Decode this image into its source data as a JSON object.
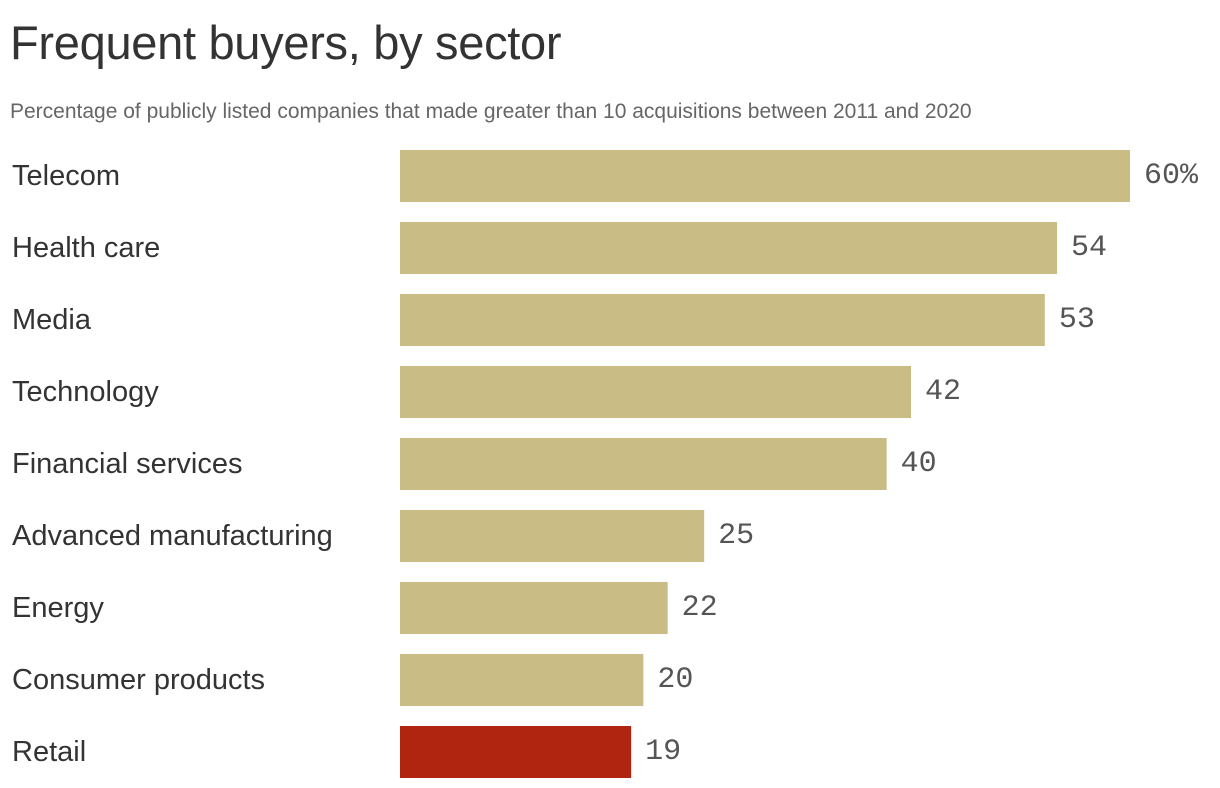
{
  "chart_data": {
    "type": "bar",
    "orientation": "horizontal",
    "title": "Frequent buyers, by sector",
    "subtitle": "Percentage of publicly listed companies that made greater than 10 acquisitions between 2011 and 2020",
    "categories": [
      "Telecom",
      "Health care",
      "Media",
      "Technology",
      "Financial services",
      "Advanced manufacturing",
      "Energy",
      "Consumer products",
      "Retail"
    ],
    "values": [
      60,
      54,
      53,
      42,
      40,
      25,
      22,
      20,
      19
    ],
    "value_labels": [
      "60%",
      "54",
      "53",
      "42",
      "40",
      "25",
      "22",
      "20",
      "19"
    ],
    "xlim": [
      0,
      60
    ],
    "grid": false,
    "legend": "none",
    "colors": {
      "default": "#c9bd85",
      "highlight": "#b0250f"
    },
    "highlight_category": "Retail"
  }
}
